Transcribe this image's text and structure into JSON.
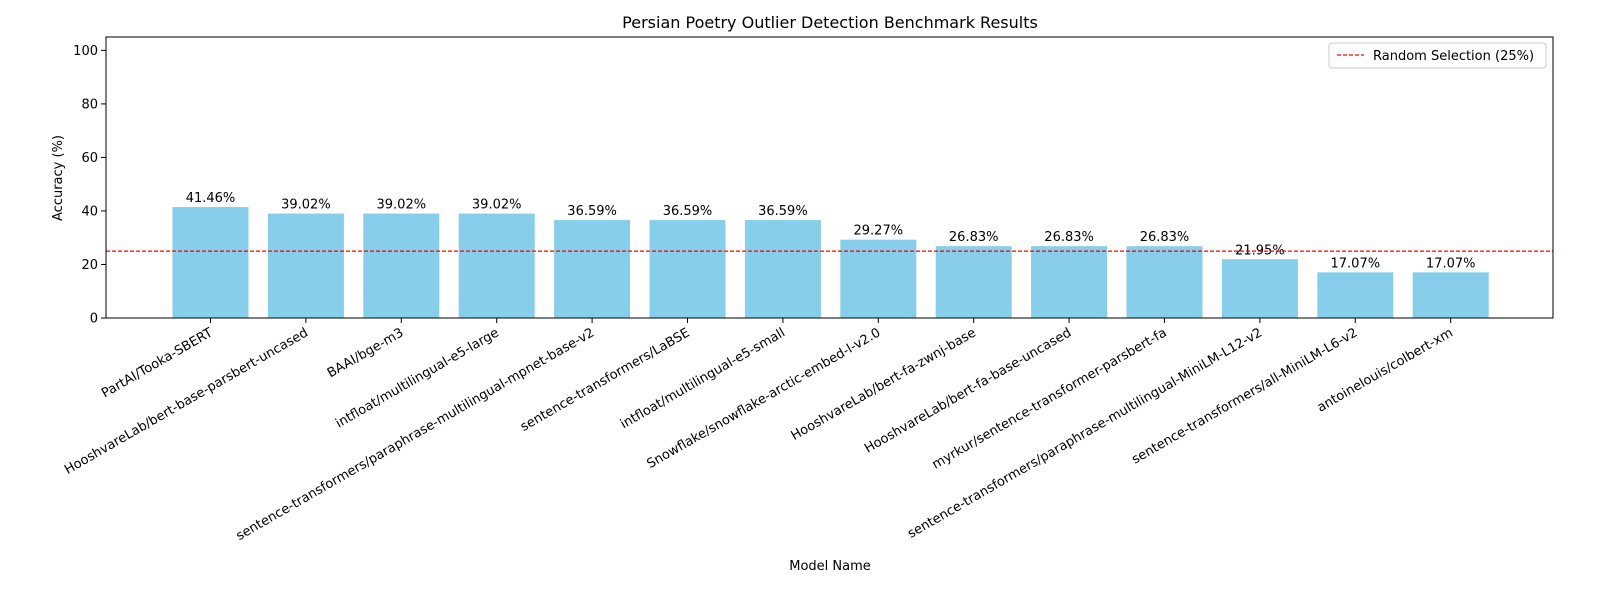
{
  "chart_data": {
    "type": "bar",
    "title": "Persian Poetry Outlier Detection Benchmark Results",
    "xlabel": "Model Name",
    "ylabel": "Accuracy (%)",
    "ylim": [
      0,
      105
    ],
    "yticks": [
      0,
      20,
      40,
      60,
      80,
      100
    ],
    "grid": false,
    "legend_position": "top-right",
    "bar_color": "#87CEEB",
    "categories": [
      "PartAI/Tooka-SBERT",
      "HooshvareLab/bert-base-parsbert-uncased",
      "BAAI/bge-m3",
      "intfloat/multilingual-e5-large",
      "sentence-transformers/paraphrase-multilingual-mpnet-base-v2",
      "sentence-transformers/LaBSE",
      "intfloat/multilingual-e5-small",
      "Snowflake/snowflake-arctic-embed-l-v2.0",
      "HooshvareLab/bert-fa-zwnj-base",
      "HooshvareLab/bert-fa-base-uncased",
      "myrkur/sentence-transformer-parsbert-fa",
      "sentence-transformers/paraphrase-multilingual-MiniLM-L12-v2",
      "sentence-transformers/all-MiniLM-L6-v2",
      "antoinelouis/colbert-xm"
    ],
    "values": [
      41.46,
      39.02,
      39.02,
      39.02,
      36.59,
      36.59,
      36.59,
      29.27,
      26.83,
      26.83,
      26.83,
      21.95,
      17.07,
      17.07
    ],
    "value_labels": [
      "41.46%",
      "39.02%",
      "39.02%",
      "39.02%",
      "36.59%",
      "36.59%",
      "36.59%",
      "29.27%",
      "26.83%",
      "26.83%",
      "26.83%",
      "21.95%",
      "17.07%",
      "17.07%"
    ],
    "reference_line": {
      "name": "Random Selection (25%)",
      "value": 25,
      "color": "#FF0000",
      "style": "dashed"
    }
  }
}
